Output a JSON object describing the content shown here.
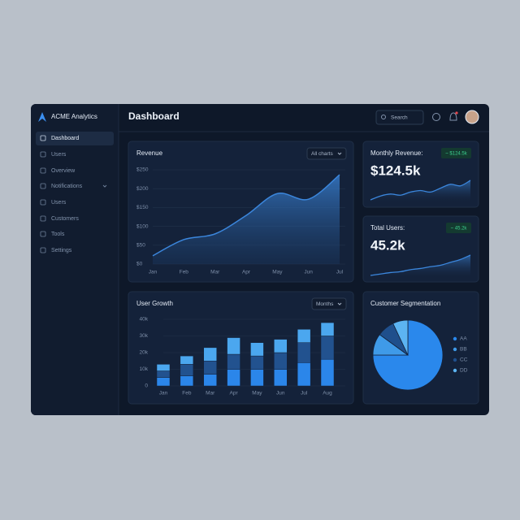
{
  "sidebar": {
    "brand": "ACME Analytics",
    "items": [
      "Dashboard",
      "Users",
      "Overview",
      "Notifications",
      "Users",
      "Customers",
      "Tools",
      "Settings"
    ]
  },
  "header": {
    "title": "Dashboard",
    "search": "Search"
  },
  "revenue": {
    "type": "area",
    "title": "Revenue",
    "dropdown": "All charts",
    "categories": [
      "Jan",
      "Feb",
      "Mar",
      "Apr",
      "May",
      "Jun",
      "Jul"
    ],
    "values": [
      22,
      65,
      80,
      129,
      187,
      172,
      237
    ],
    "color": "#3b86dc",
    "ylim": [
      0,
      250
    ],
    "yticks": [
      {
        "value": 0,
        "label": "$0"
      },
      {
        "value": 50,
        "label": "$50"
      },
      {
        "value": 100,
        "label": "$100"
      },
      {
        "value": 150,
        "label": "$150"
      },
      {
        "value": 200,
        "label": "$200"
      },
      {
        "value": 250,
        "label": "$250"
      }
    ],
    "grid": true
  },
  "monthly_revenue": {
    "title": "Monthly Revenue:",
    "badge": "~ $124.5k",
    "value": "$124.5k",
    "sparkline": {
      "type": "line",
      "color": "#3b86dc",
      "values": [
        3,
        4,
        4.5,
        4.2,
        5,
        5.4,
        5,
        6,
        7,
        6.6,
        8
      ]
    }
  },
  "total_users": {
    "title": "Total Users:",
    "badge": "~ 45.2k",
    "value": "45.2k",
    "sparkline": {
      "type": "line",
      "color": "#3b86dc",
      "values": [
        1,
        1.5,
        2,
        2.3,
        3,
        3.4,
        4,
        4.5,
        5.5,
        6.5,
        8
      ]
    }
  },
  "user_growth": {
    "type": "stacked-bar",
    "title": "User Growth",
    "dropdown": "Months",
    "categories": [
      "Jan",
      "Feb",
      "Mar",
      "Apr",
      "May",
      "Jun",
      "Jul",
      "Aug"
    ],
    "series": [
      {
        "color": "#2b86ea",
        "values": [
          5,
          6,
          7,
          10,
          10,
          10,
          14,
          16
        ]
      },
      {
        "color": "#22528f",
        "values": [
          4,
          7,
          8,
          9,
          8,
          10,
          12,
          14
        ]
      },
      {
        "color": "#4ba7ef",
        "values": [
          4,
          5,
          8,
          10,
          8,
          8,
          8,
          8
        ]
      }
    ],
    "ylim": [
      0,
      40
    ],
    "yticks": [
      0,
      {
        "value": 10,
        "label": "10k"
      },
      {
        "value": 20,
        "label": "20k"
      },
      {
        "value": 30,
        "label": "30k"
      },
      {
        "value": 40,
        "label": "40k"
      }
    ],
    "grid": true
  },
  "segmentation": {
    "type": "pie",
    "title": "Customer Segmentation",
    "categories": [
      "AA",
      "BB",
      "CC",
      "DD"
    ],
    "values": [
      75,
      10,
      8,
      7
    ],
    "colors": [
      "#2a88ec",
      "#3f9ae8",
      "#1f4f8c",
      "#5cb4f2"
    ]
  }
}
